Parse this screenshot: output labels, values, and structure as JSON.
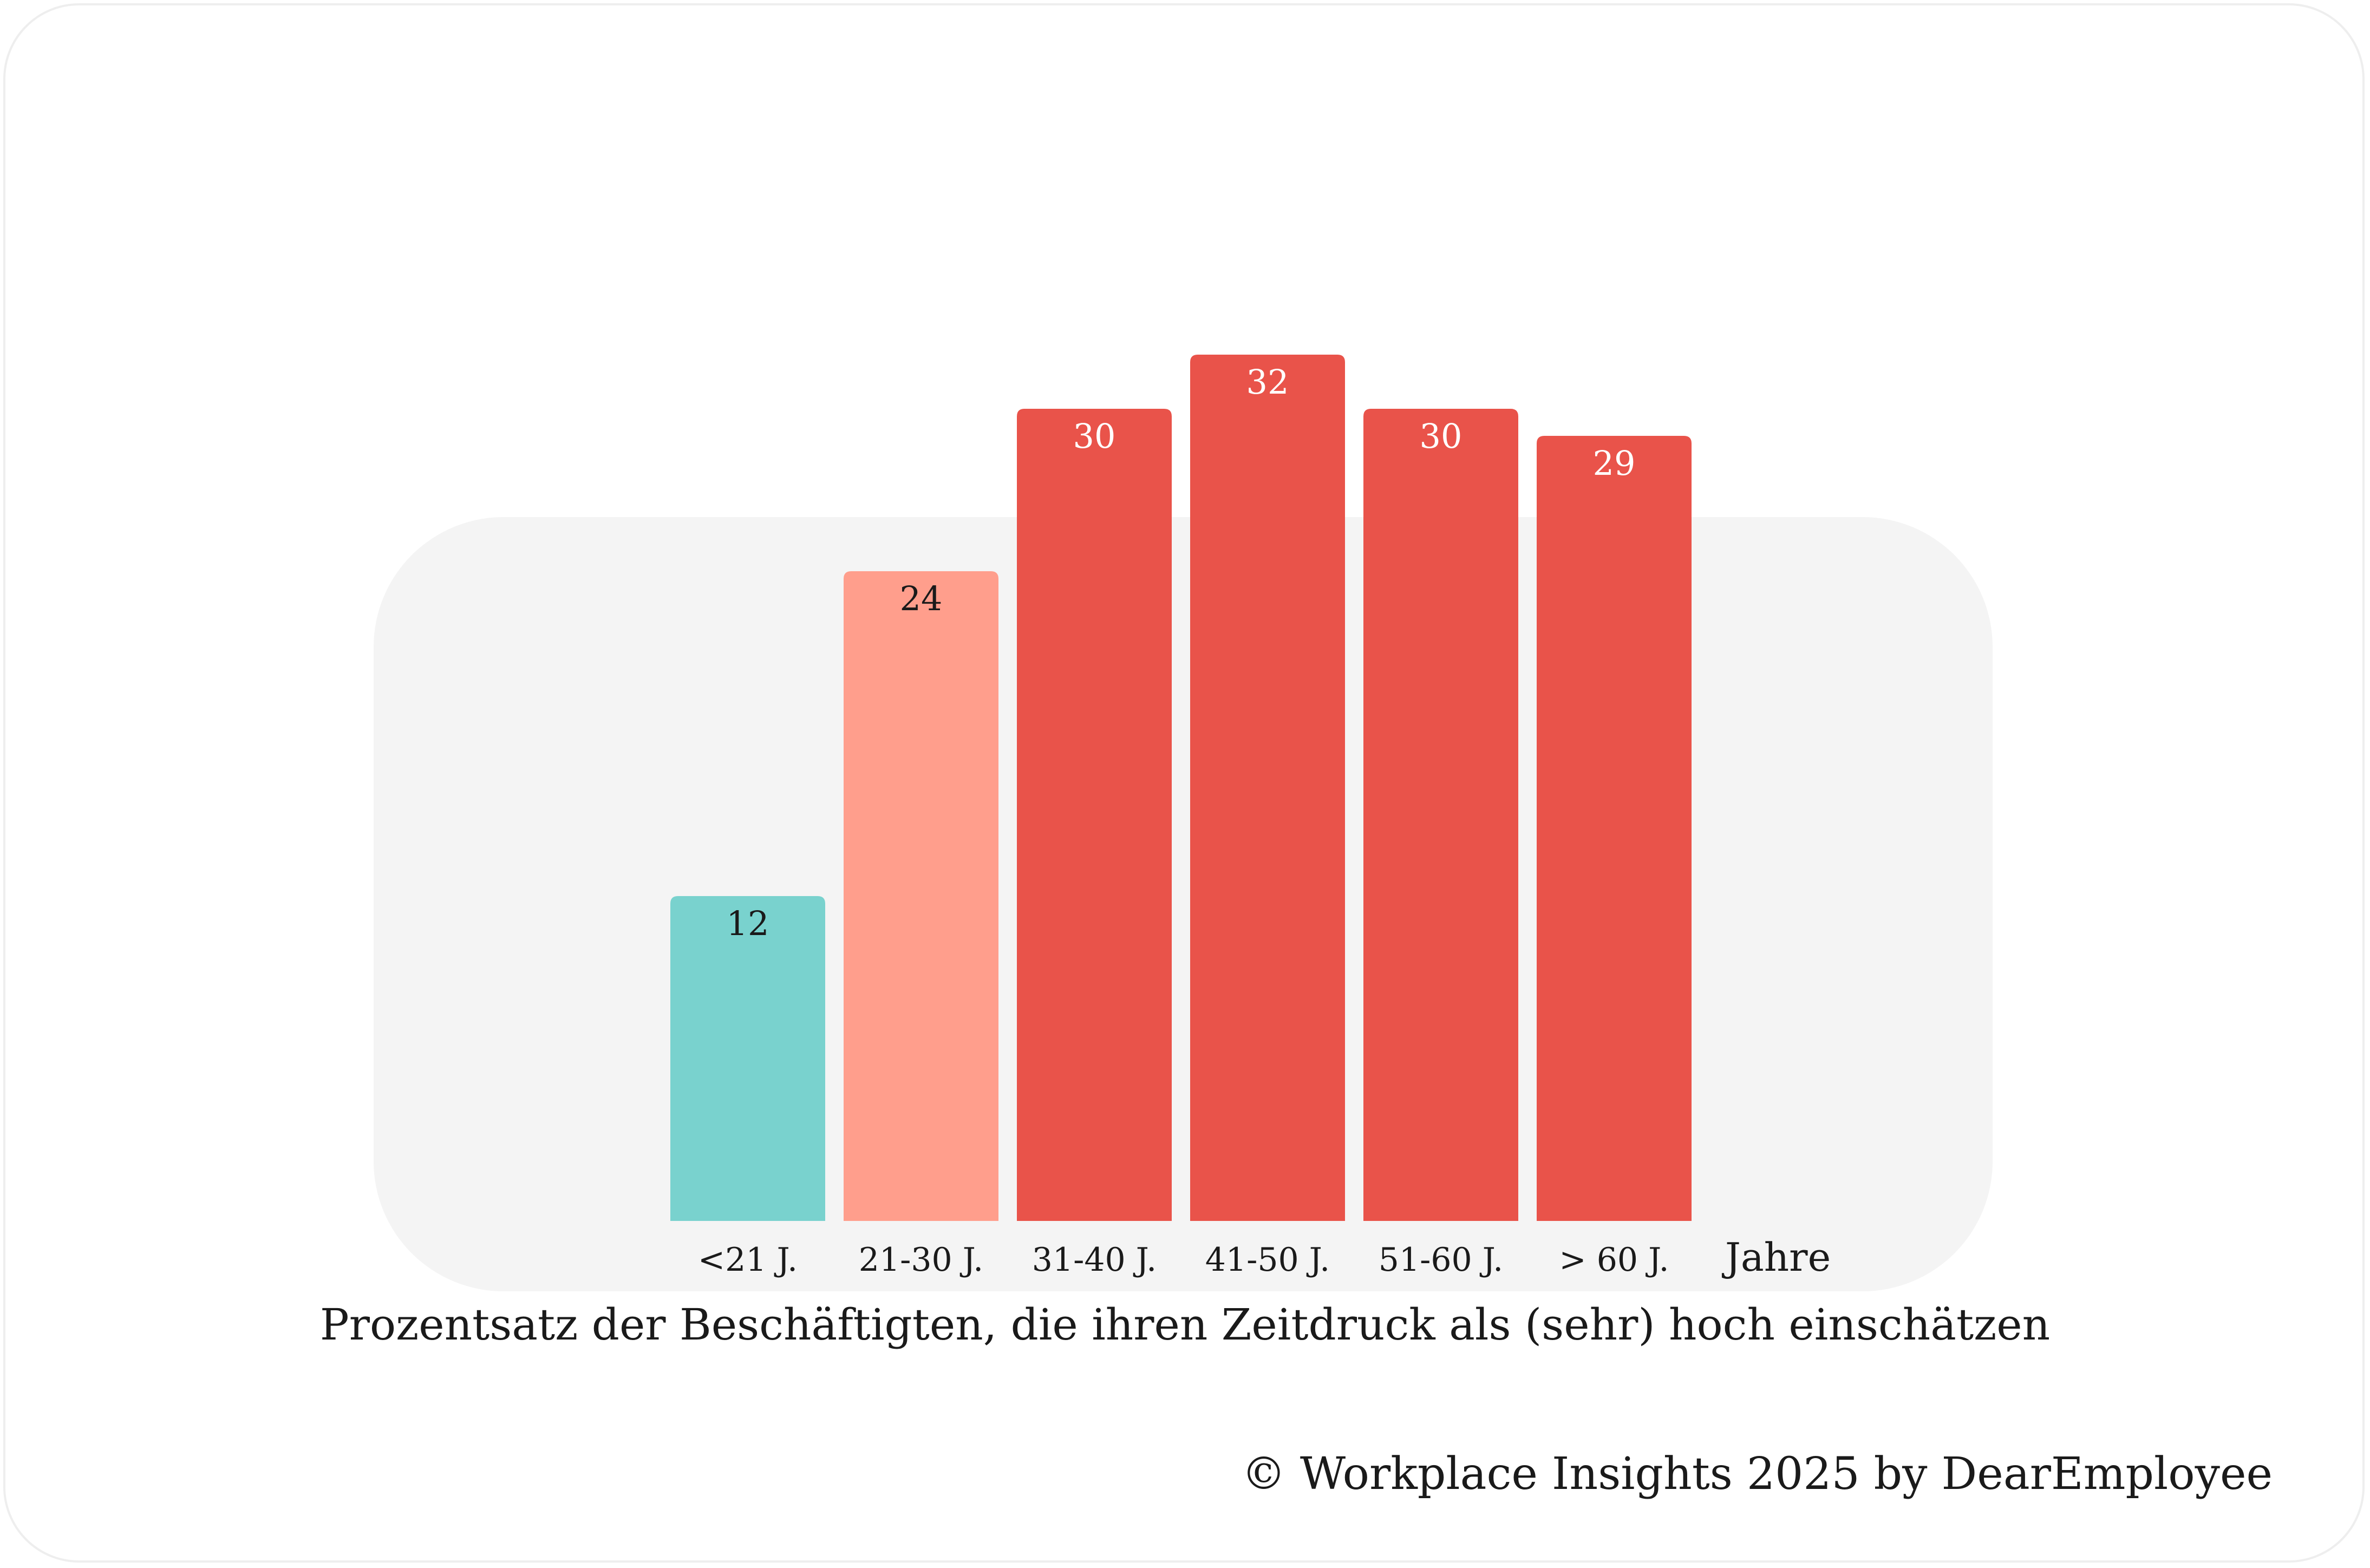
{
  "chart_data": {
    "type": "bar",
    "categories": [
      "<21 J.",
      "21-30 J.",
      "31-40 J.",
      "41-50 J.",
      "51-60 J.",
      "> 60 J."
    ],
    "values": [
      12,
      24,
      30,
      32,
      30,
      29
    ],
    "bar_colors": [
      "#79d2ce",
      "#ff9e8c",
      "#e9534a",
      "#e9534a",
      "#e9534a",
      "#e9534a"
    ],
    "label_colors": [
      "#1a1a1a",
      "#1a1a1a",
      "#ffffff",
      "#ffffff",
      "#ffffff",
      "#ffffff"
    ],
    "xlabel": "Jahre",
    "caption": "Prozentsatz der Beschäftigten, die ihren Zeitdruck als (sehr) hoch einschätzen",
    "ylim": [
      0,
      32
    ],
    "grid": false,
    "legend": "none"
  },
  "footer": {
    "copyright": "© Workplace Insights 2025 by DearEmployee"
  },
  "colors": {
    "panel_background": "#f4f4f4",
    "card_border": "#eeeeee"
  }
}
